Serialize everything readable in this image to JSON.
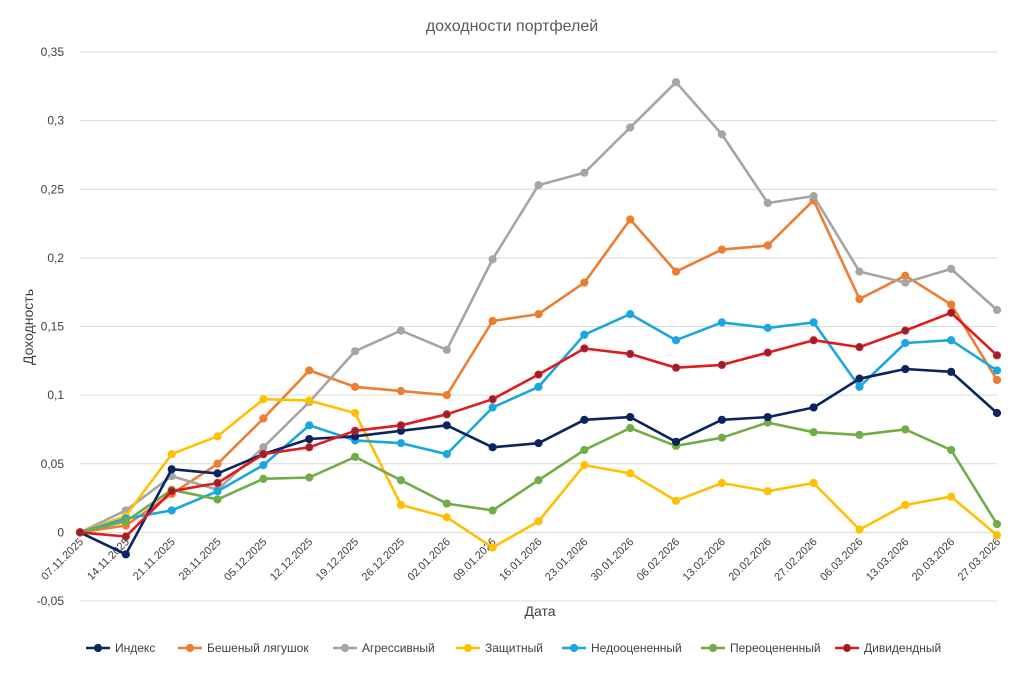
{
  "chart_data": {
    "type": "line",
    "title": "доходности портфелей",
    "xlabel": "Дата",
    "ylabel": "Доходность",
    "ylim": [
      -0.05,
      0.35
    ],
    "yticks": [
      "-0,05",
      "0",
      "0,05",
      "0,1",
      "0,15",
      "0,2",
      "0,25",
      "0,3",
      "0,35"
    ],
    "ytick_values": [
      -0.05,
      0,
      0.05,
      0.1,
      0.15,
      0.2,
      0.25,
      0.3,
      0.35
    ],
    "grid": true,
    "legend": "bottom",
    "x": [
      "07.11.2025",
      "14.11.2025",
      "21.11.2025",
      "28.11.2025",
      "05.12.2025",
      "12.12.2025",
      "19.12.2025",
      "26.12.2025",
      "02.01.2026",
      "09.01.2026",
      "16.01.2026",
      "23.01.2026",
      "30.01.2026",
      "06.02.2026",
      "13.02.2026",
      "20.02.2026",
      "27.02.2026",
      "06.03.2026",
      "13.03.2026",
      "20.03.2026",
      "27.03.2026"
    ],
    "series": [
      {
        "name": "Бешеный лягушок",
        "color": "#ED7D31",
        "values": [
          0,
          0.005,
          0.028,
          0.05,
          0.083,
          0.118,
          0.106,
          0.103,
          0.1,
          0.154,
          0.159,
          0.182,
          0.228,
          0.19,
          0.206,
          0.209,
          0.242,
          0.17,
          0.187,
          0.166,
          0.111
        ]
      },
      {
        "name": "Агрессивный",
        "color": "#A5A5A5",
        "values": [
          0,
          0.016,
          0.041,
          0.031,
          0.062,
          0.095,
          0.132,
          0.147,
          0.133,
          0.199,
          0.253,
          0.262,
          0.295,
          0.328,
          0.29,
          0.24,
          0.245,
          0.19,
          0.182,
          0.192,
          0.162
        ]
      },
      {
        "name": "Защитный",
        "color": "#FFC000",
        "values": [
          0,
          0.012,
          0.057,
          0.07,
          0.097,
          0.096,
          0.087,
          0.02,
          0.011,
          -0.011,
          0.008,
          0.049,
          0.043,
          0.023,
          0.036,
          0.03,
          0.036,
          0.002,
          0.02,
          0.026,
          -0.002
        ]
      },
      {
        "name": "Недооцененный",
        "color": "#1AA7E0",
        "values": [
          0,
          0.01,
          0.016,
          0.03,
          0.049,
          0.078,
          0.067,
          0.065,
          0.057,
          0.091,
          0.106,
          0.144,
          0.159,
          0.14,
          0.153,
          0.149,
          0.153,
          0.106,
          0.138,
          0.14,
          0.118
        ]
      },
      {
        "name": "Переоцененный",
        "color": "#70AD47",
        "values": [
          0,
          0.008,
          0.031,
          0.024,
          0.039,
          0.04,
          0.055,
          0.038,
          0.021,
          0.016,
          0.038,
          0.06,
          0.076,
          0.063,
          0.069,
          0.08,
          0.073,
          0.071,
          0.075,
          0.06,
          0.006
        ]
      },
      {
        "name": "Индекс",
        "color": "#0B2460",
        "values": [
          0,
          -0.016,
          0.046,
          0.043,
          0.057,
          0.068,
          0.07,
          0.074,
          0.078,
          0.062,
          0.065,
          0.082,
          0.084,
          0.066,
          0.082,
          0.084,
          0.091,
          0.112,
          0.119,
          0.117,
          0.087
        ]
      },
      {
        "name": "Дивидендный",
        "color": "#E01B1B",
        "markerColor": "#8B2535",
        "values": [
          0,
          -0.003,
          0.03,
          0.036,
          0.057,
          0.062,
          0.074,
          0.078,
          0.086,
          0.097,
          0.115,
          0.134,
          0.13,
          0.12,
          0.122,
          0.131,
          0.14,
          0.135,
          0.147,
          0.16,
          0.129
        ]
      }
    ],
    "legend_order": [
      "Индекс",
      "Бешеный лягушок",
      "Агрессивный",
      "Защитный",
      "Недооцененный",
      "Переоцененный",
      "Дивидендный"
    ]
  }
}
